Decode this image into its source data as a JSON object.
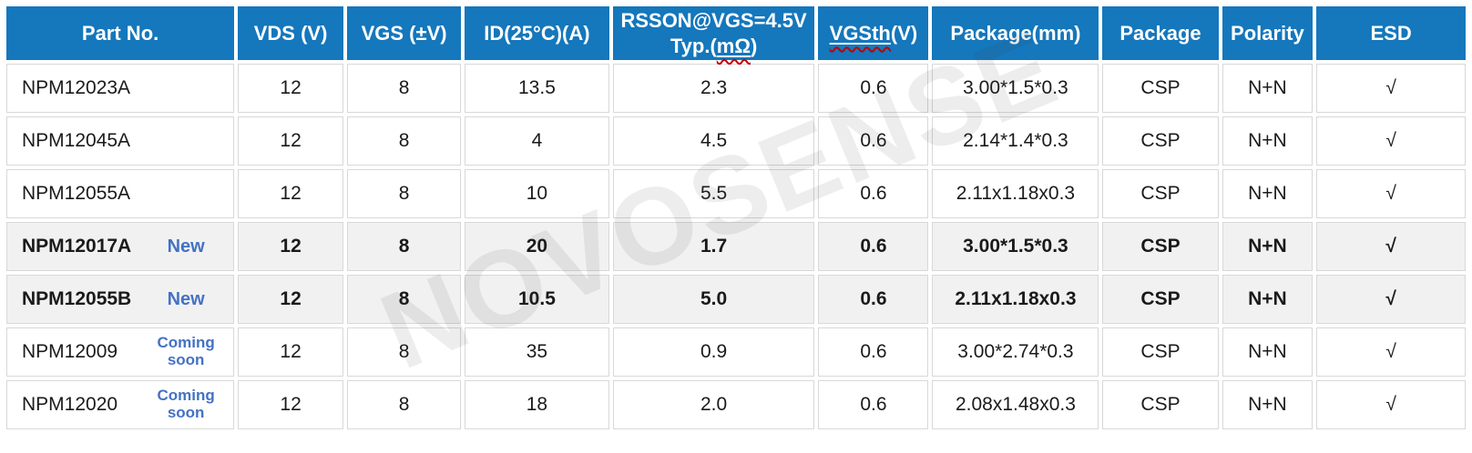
{
  "watermark": "NOVOSENSE",
  "colors": {
    "header_bg": "#1577BC",
    "header_text": "#FFFFFF",
    "tag_blue": "#4472C4",
    "highlight_row_bg": "#F1F1F1",
    "cell_border": "#D8D8D8",
    "spellcheck_red": "#C00000"
  },
  "table": {
    "columns": [
      {
        "label": "Part No."
      },
      {
        "label": "VDS (V)"
      },
      {
        "label": "VGS (±V)"
      },
      {
        "label": "ID(25°C)(A)"
      },
      {
        "line1": "RSSON@VGS=4.5V",
        "line2_pre": "Typ.(",
        "line2_mark": "mΩ",
        "line2_post": ")"
      },
      {
        "mark": "VGSth",
        "post": "(V)"
      },
      {
        "label": "Package(mm)"
      },
      {
        "label": "Package"
      },
      {
        "label": "Polarity"
      },
      {
        "label": "ESD"
      }
    ],
    "rows": [
      {
        "part": "NPM12023A",
        "tag": "",
        "vds": "12",
        "vgs": "8",
        "id": "13.5",
        "rsson": "2.3",
        "vgsth": "0.6",
        "package_mm": "3.00*1.5*0.3",
        "package": "CSP",
        "polarity": "N+N",
        "esd": "√"
      },
      {
        "part": "NPM12045A",
        "tag": "",
        "vds": "12",
        "vgs": "8",
        "id": "4",
        "rsson": "4.5",
        "vgsth": "0.6",
        "package_mm": "2.14*1.4*0.3",
        "package": "CSP",
        "polarity": "N+N",
        "esd": "√"
      },
      {
        "part": "NPM12055A",
        "tag": "",
        "vds": "12",
        "vgs": "8",
        "id": "10",
        "rsson": "5.5",
        "vgsth": "0.6",
        "package_mm": "2.11x1.18x0.3",
        "package": "CSP",
        "polarity": "N+N",
        "esd": "√"
      },
      {
        "part": "NPM12017A",
        "tag": "New",
        "vds": "12",
        "vgs": "8",
        "id": "20",
        "rsson": "1.7",
        "vgsth": "0.6",
        "package_mm": "3.00*1.5*0.3",
        "package": "CSP",
        "polarity": "N+N",
        "esd": "√"
      },
      {
        "part": "NPM12055B",
        "tag": "New",
        "vds": "12",
        "vgs": "8",
        "id": "10.5",
        "rsson": "5.0",
        "vgsth": "0.6",
        "package_mm": "2.11x1.18x0.3",
        "package": "CSP",
        "polarity": "N+N",
        "esd": "√"
      },
      {
        "part": "NPM12009",
        "tag": "Coming soon",
        "vds": "12",
        "vgs": "8",
        "id": "35",
        "rsson": "0.9",
        "vgsth": "0.6",
        "package_mm": "3.00*2.74*0.3",
        "package": "CSP",
        "polarity": "N+N",
        "esd": "√"
      },
      {
        "part": "NPM12020",
        "tag": "Coming soon",
        "vds": "12",
        "vgs": "8",
        "id": "18",
        "rsson": "2.0",
        "vgsth": "0.6",
        "package_mm": "2.08x1.48x0.3",
        "package": "CSP",
        "polarity": "N+N",
        "esd": "√"
      }
    ]
  }
}
